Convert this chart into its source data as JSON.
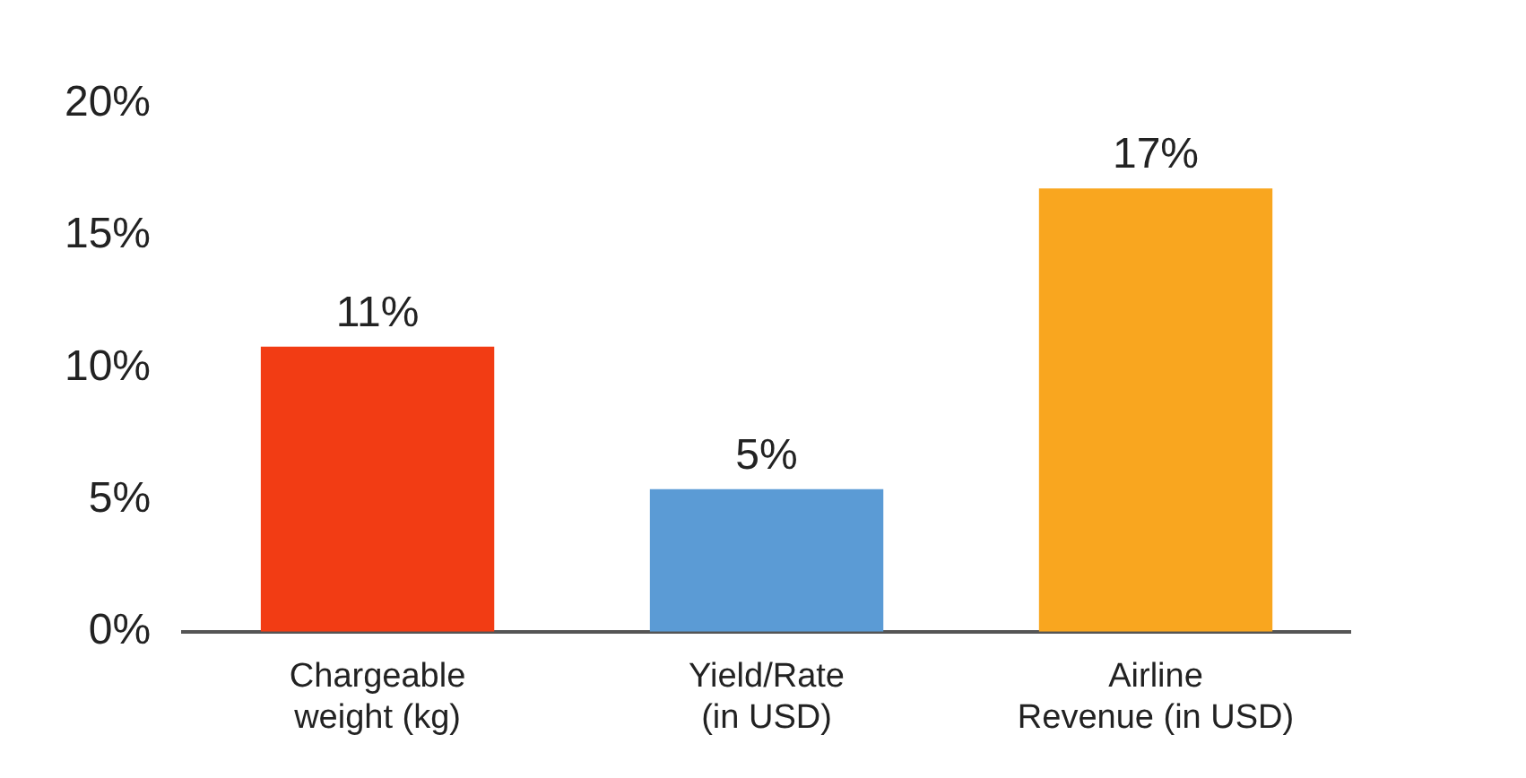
{
  "chart_data": {
    "type": "bar",
    "categories": [
      "Chargeable\nweight (kg)",
      "Yield/Rate\n(in USD)",
      "Airline\nRevenue (in USD)"
    ],
    "values": [
      10.8,
      5.4,
      16.8
    ],
    "colors": [
      "#f23c14",
      "#5b9bd5",
      "#f9a61f"
    ],
    "value_labels": [
      "11%",
      "5%",
      "17%"
    ],
    "ylim": [
      0,
      20
    ],
    "yticks": [
      {
        "value": 0,
        "label": "0%"
      },
      {
        "value": 5,
        "label": "5%"
      },
      {
        "value": 10,
        "label": "10%"
      },
      {
        "value": 15,
        "label": "15%"
      },
      {
        "value": 20,
        "label": "20%"
      }
    ],
    "grid": false,
    "legend": false
  }
}
